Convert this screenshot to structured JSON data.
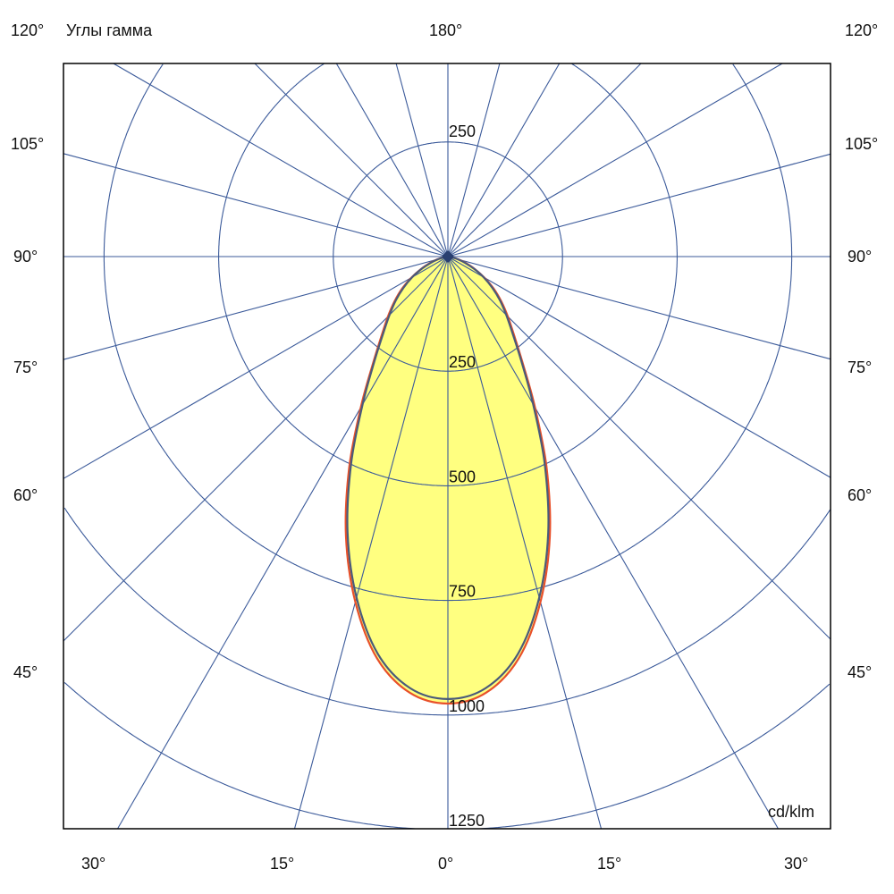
{
  "chart_data": {
    "type": "polar",
    "title": "Углы гамма",
    "unit_label": "cd/klm",
    "radial_ticks": [
      250,
      500,
      750,
      1000,
      1250
    ],
    "radial_max_drawn": 1500,
    "angle_step_deg": 15,
    "top_label": "180°",
    "side_labels": [
      "120°",
      "105°",
      "90°",
      "75°",
      "60°",
      "45°"
    ],
    "bottom_labels": [
      "30°",
      "15°",
      "0°",
      "15°",
      "30°"
    ],
    "grid": true,
    "colors": {
      "grid": "#3b5a9a",
      "fill": "#ffff80",
      "curve1": "#e8502a",
      "curve2": "#4a5a7a"
    },
    "series": [
      {
        "angles": [
          0,
          5,
          10,
          15,
          20,
          25,
          30,
          35,
          40,
          45,
          50,
          55,
          60,
          65,
          70,
          75,
          80,
          85,
          90
        ],
        "values": [
          975,
          955,
          890,
          780,
          650,
          510,
          380,
          285,
          225,
          185,
          152,
          122,
          92,
          65,
          42,
          24,
          10,
          3,
          0
        ]
      },
      {
        "angles": [
          0,
          5,
          10,
          15,
          20,
          25,
          30,
          35,
          40,
          45,
          50,
          55,
          60,
          65,
          70,
          75,
          80,
          85,
          90
        ],
        "values": [
          965,
          945,
          880,
          770,
          640,
          500,
          372,
          280,
          220,
          180,
          148,
          118,
          90,
          63,
          40,
          22,
          9,
          3,
          0
        ]
      }
    ]
  }
}
